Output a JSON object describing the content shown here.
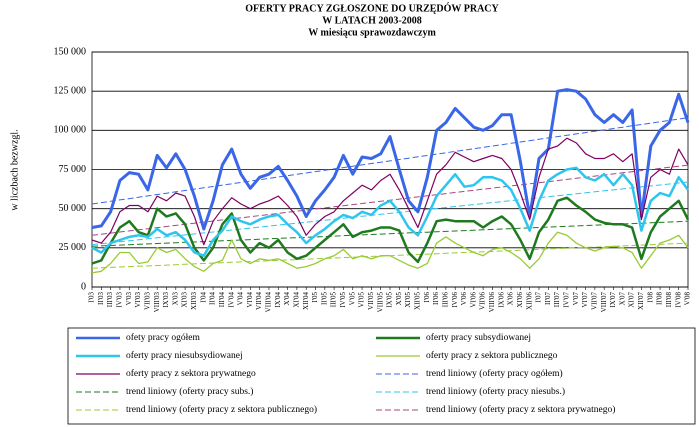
{
  "chart_data": {
    "type": "line",
    "title": "OFERTY PRACY ZGŁOSZONE DO URZĘDÓW PRACY",
    "subtitle": "W LATACH 2003-2008",
    "subtitle2": "W miesiącu sprawozdawczym",
    "y_label": "w liczbach bezwzgl.",
    "categories": [
      "I'03",
      "II'03",
      "III'03",
      "IV'03",
      "V'03",
      "VI'03",
      "VII'03",
      "VIII'03",
      "IX'03",
      "X'03",
      "XI'03",
      "XII'03",
      "I'04",
      "II'04",
      "III'04",
      "IV'04",
      "V'04",
      "VI'04",
      "VII'04",
      "VIII'04",
      "IX'04",
      "X'04",
      "XI'04",
      "XII'04",
      "I'05",
      "II'05",
      "III'05",
      "IV'05",
      "V'05",
      "VI'05",
      "VII'05",
      "VIII'05",
      "IX'05",
      "X'05",
      "XI'05",
      "XII'05",
      "I'06",
      "II'06",
      "III'06",
      "IV'06",
      "V'06",
      "VI'06",
      "VII'06",
      "VIII'06",
      "IX'06",
      "X'06",
      "XI'06",
      "XII'06",
      "I'07",
      "II'07",
      "III'07",
      "IV'07",
      "V'07",
      "VI'07",
      "VII'07",
      "VIII'07",
      "IX'07",
      "X'07",
      "XI'07",
      "XII'07",
      "I'08",
      "II'08",
      "III'08",
      "IV'08",
      "V'08"
    ],
    "ylim": [
      0,
      150000
    ],
    "yticks": [
      0,
      {
        "value": 25000,
        "label": "25 000"
      },
      {
        "value": 50000,
        "label": "50 000"
      },
      {
        "value": 75000,
        "label": "75 000"
      },
      {
        "value": 100000,
        "label": "100 000"
      },
      {
        "value": 125000,
        "label": "125 000"
      },
      {
        "value": 150000,
        "label": "150 000"
      }
    ],
    "grid": true,
    "legend": "bottom",
    "series": [
      {
        "name": "ofety pracy ogółem",
        "color": "#3a66e8",
        "line_width": 3,
        "style": "solid",
        "values": [
          38000,
          39000,
          48000,
          68000,
          73000,
          72000,
          62000,
          84000,
          76000,
          85000,
          75000,
          58000,
          37000,
          55000,
          78000,
          88000,
          72000,
          63000,
          70000,
          72000,
          77000,
          68000,
          58000,
          45000,
          55000,
          62000,
          70000,
          84000,
          72000,
          83000,
          82000,
          85000,
          96000,
          75000,
          55000,
          48000,
          70000,
          100000,
          105000,
          114000,
          108000,
          102000,
          100000,
          103000,
          110000,
          110000,
          80000,
          45000,
          82000,
          88000,
          125000,
          126000,
          125000,
          120000,
          110000,
          105000,
          110000,
          105000,
          113000,
          45000,
          90000,
          100000,
          105000,
          123000,
          105000
        ]
      },
      {
        "name": "oferty pracy subsydiowanej",
        "color": "#1f7a1f",
        "line_width": 2.5,
        "style": "solid",
        "values": [
          15000,
          17000,
          28000,
          38000,
          42000,
          35000,
          33000,
          50000,
          45000,
          47000,
          40000,
          25000,
          17000,
          25000,
          40000,
          47000,
          30000,
          22000,
          28000,
          25000,
          30000,
          22000,
          18000,
          20000,
          25000,
          30000,
          35000,
          40000,
          32000,
          35000,
          36000,
          38000,
          38000,
          36000,
          22000,
          16000,
          28000,
          42000,
          43000,
          42000,
          42000,
          42000,
          38000,
          42000,
          45000,
          40000,
          30000,
          18000,
          35000,
          43000,
          55000,
          57000,
          52000,
          48000,
          43000,
          41000,
          40000,
          40000,
          38000,
          18000,
          35000,
          45000,
          50000,
          55000,
          43000
        ]
      },
      {
        "name": "oferty pracy niesubsydiowanej",
        "color": "#2ec5ee",
        "line_width": 2.5,
        "style": "solid",
        "values": [
          25000,
          22000,
          28000,
          30000,
          32000,
          33000,
          32000,
          37000,
          33000,
          35000,
          30000,
          22000,
          20000,
          30000,
          36000,
          45000,
          42000,
          40000,
          43000,
          45000,
          46000,
          40000,
          35000,
          28000,
          33000,
          37000,
          42000,
          46000,
          44000,
          48000,
          46000,
          52000,
          55000,
          48000,
          38000,
          33000,
          45000,
          58000,
          65000,
          72000,
          64000,
          65000,
          70000,
          70000,
          68000,
          62000,
          50000,
          36000,
          55000,
          68000,
          72000,
          75000,
          76000,
          70000,
          68000,
          72000,
          65000,
          72000,
          65000,
          36000,
          55000,
          60000,
          58000,
          70000,
          62000
        ]
      },
      {
        "name": "oferty pracy z sektora publicznego",
        "color": "#9acb34",
        "line_width": 1.3,
        "style": "solid",
        "values": [
          9000,
          10000,
          15000,
          22000,
          22000,
          15000,
          16000,
          25000,
          22000,
          24000,
          18000,
          13000,
          10000,
          15000,
          17000,
          30000,
          18000,
          15000,
          18000,
          17000,
          18000,
          15000,
          12000,
          13000,
          15000,
          18000,
          20000,
          24000,
          18000,
          20000,
          18000,
          20000,
          20000,
          17000,
          14000,
          12000,
          15000,
          28000,
          32000,
          28000,
          25000,
          22000,
          20000,
          24000,
          25000,
          22000,
          18000,
          12000,
          18000,
          28000,
          35000,
          33000,
          28000,
          25000,
          23000,
          25000,
          26000,
          25000,
          22000,
          12000,
          20000,
          28000,
          30000,
          33000,
          25000
        ]
      },
      {
        "name": "oferty pracy z sektora prywatnego",
        "color": "#800060",
        "line_width": 1.2,
        "style": "solid",
        "values": [
          30000,
          28000,
          35000,
          48000,
          52000,
          52000,
          48000,
          58000,
          55000,
          60000,
          58000,
          45000,
          27000,
          42000,
          50000,
          57000,
          53000,
          50000,
          53000,
          55000,
          58000,
          52000,
          45000,
          33000,
          40000,
          45000,
          48000,
          55000,
          60000,
          65000,
          62000,
          68000,
          72000,
          62000,
          50000,
          38000,
          55000,
          72000,
          78000,
          86000,
          83000,
          80000,
          82000,
          84000,
          82000,
          75000,
          60000,
          43000,
          70000,
          88000,
          90000,
          95000,
          92000,
          85000,
          82000,
          82000,
          85000,
          80000,
          85000,
          43000,
          70000,
          75000,
          72000,
          88000,
          78000
        ]
      },
      {
        "name": "trend liniowy (oferty pracy ogółem)",
        "color": "#3a66e8",
        "line_width": 1,
        "style": "dashed",
        "values": [
          53000,
          53860,
          54720,
          55580,
          56440,
          57300,
          58160,
          59020,
          59880,
          60740,
          61600,
          62460,
          63320,
          64180,
          65040,
          65900,
          66760,
          67620,
          68480,
          69340,
          70200,
          71060,
          71920,
          72780,
          73640,
          74500,
          75360,
          76220,
          77080,
          77940,
          78800,
          79660,
          80520,
          81380,
          82240,
          83100,
          83960,
          84820,
          85680,
          86540,
          87400,
          88260,
          89120,
          89980,
          90840,
          91700,
          92560,
          93420,
          94280,
          95140,
          96000,
          96860,
          97720,
          98580,
          99440,
          100300,
          101160,
          102020,
          102880,
          103740,
          104600,
          105460,
          106320,
          107180,
          108040
        ]
      },
      {
        "name": "trend liniowy (oferty pracy subs.)",
        "color": "#1f7a1f",
        "line_width": 1,
        "style": "dashed",
        "values": [
          26000,
          26250,
          26500,
          26750,
          27000,
          27250,
          27500,
          27750,
          28000,
          28250,
          28500,
          28750,
          29000,
          29250,
          29500,
          29750,
          30000,
          30250,
          30500,
          30750,
          31000,
          31250,
          31500,
          31750,
          32000,
          32250,
          32500,
          32750,
          33000,
          33250,
          33500,
          33750,
          34000,
          34250,
          34500,
          34750,
          35000,
          35250,
          35500,
          35750,
          36000,
          36250,
          36500,
          36750,
          37000,
          37250,
          37500,
          37750,
          38000,
          38250,
          38500,
          38750,
          39000,
          39250,
          39500,
          39750,
          40000,
          40250,
          40500,
          40750,
          41000,
          41250,
          41500,
          41750,
          42000
        ]
      },
      {
        "name": "trend liniowy (oferty pracy niesubs.)",
        "color": "#2ec5ee",
        "line_width": 1,
        "style": "dashed",
        "values": [
          27000,
          27625,
          28250,
          28875,
          29500,
          30125,
          30750,
          31375,
          32000,
          32625,
          33250,
          33875,
          34500,
          35125,
          35750,
          36375,
          37000,
          37625,
          38250,
          38875,
          39500,
          40125,
          40750,
          41375,
          42000,
          42625,
          43250,
          43875,
          44500,
          45125,
          45750,
          46375,
          47000,
          47625,
          48250,
          48875,
          49500,
          50125,
          50750,
          51375,
          52000,
          52625,
          53250,
          53875,
          54500,
          55125,
          55750,
          56375,
          57000,
          57625,
          58250,
          58875,
          59500,
          60125,
          60750,
          61375,
          62000,
          62625,
          63250,
          63875,
          64500,
          65125,
          65750,
          66375,
          67000
        ]
      },
      {
        "name": "trend liniowy (oferty pracy z sektora publicznego)",
        "color": "#9acb34",
        "line_width": 1,
        "style": "dashed",
        "values": [
          12000,
          12250,
          12500,
          12750,
          13000,
          13250,
          13500,
          13750,
          14000,
          14250,
          14500,
          14750,
          15000,
          15250,
          15500,
          15750,
          16000,
          16250,
          16500,
          16750,
          17000,
          17250,
          17500,
          17750,
          18000,
          18250,
          18500,
          18750,
          19000,
          19250,
          19500,
          19750,
          20000,
          20250,
          20500,
          20750,
          21000,
          21250,
          21500,
          21750,
          22000,
          22250,
          22500,
          22750,
          23000,
          23250,
          23500,
          23750,
          24000,
          24250,
          24500,
          24750,
          25000,
          25250,
          25500,
          25750,
          26000,
          26250,
          26500,
          26750,
          27000,
          27250,
          27500,
          27750,
          28000
        ]
      },
      {
        "name": "trend liniowy (oferty pracy z sektora prywatnego)",
        "color": "#a8477e",
        "line_width": 1,
        "style": "dashed",
        "values": [
          33000,
          33700,
          34400,
          35100,
          35800,
          36500,
          37200,
          37900,
          38600,
          39300,
          40000,
          40700,
          41400,
          42100,
          42800,
          43500,
          44200,
          44900,
          45600,
          46300,
          47000,
          47700,
          48400,
          49100,
          49800,
          50500,
          51200,
          51900,
          52600,
          53300,
          54000,
          54700,
          55400,
          56100,
          56800,
          57500,
          58200,
          58900,
          59600,
          60300,
          61000,
          61700,
          62400,
          63100,
          63800,
          64500,
          65200,
          65900,
          66600,
          67300,
          68000,
          68700,
          69400,
          70100,
          70800,
          71500,
          72200,
          72900,
          73600,
          74300,
          75000,
          75700,
          76400,
          77100,
          77800
        ]
      }
    ]
  }
}
